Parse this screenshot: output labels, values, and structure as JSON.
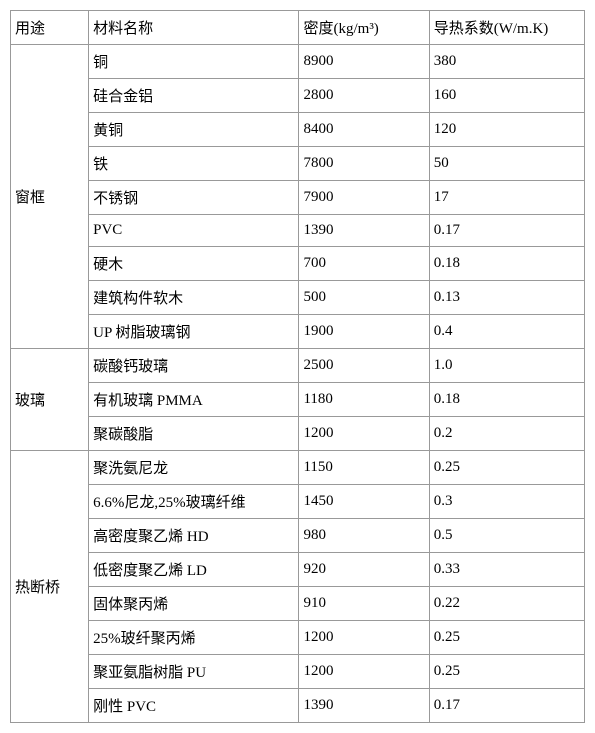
{
  "table": {
    "headers": {
      "use": "用途",
      "material": "材料名称",
      "density": "密度(kg/m³)",
      "thermal": "导热系数(W/m.K)"
    },
    "groups": [
      {
        "use": "窗框",
        "rows": [
          {
            "material": "铜",
            "density": "8900",
            "thermal": "380"
          },
          {
            "material": "硅合金铝",
            "density": "2800",
            "thermal": "160"
          },
          {
            "material": "黄铜",
            "density": "8400",
            "thermal": "120"
          },
          {
            "material": "铁",
            "density": "7800",
            "thermal": "50"
          },
          {
            "material": "不锈钢",
            "density": "7900",
            "thermal": "17"
          },
          {
            "material": "PVC",
            "density": "1390",
            "thermal": "0.17"
          },
          {
            "material": "硬木",
            "density": "700",
            "thermal": "0.18"
          },
          {
            "material": "建筑构件软木",
            "density": "500",
            "thermal": "0.13"
          },
          {
            "material": "UP 树脂玻璃钢",
            "density": "1900",
            "thermal": "0.4"
          }
        ]
      },
      {
        "use": "玻璃",
        "rows": [
          {
            "material": "碳酸钙玻璃",
            "density": "2500",
            "thermal": "1.0"
          },
          {
            "material": "有机玻璃 PMMA",
            "density": "1180",
            "thermal": "0.18"
          },
          {
            "material": "聚碳酸脂",
            "density": "1200",
            "thermal": "0.2"
          }
        ]
      },
      {
        "use": "热断桥",
        "rows": [
          {
            "material": "聚洗氨尼龙",
            "density": "1150",
            "thermal": "0.25"
          },
          {
            "material": "6.6%尼龙,25%玻璃纤维",
            "density": "1450",
            "thermal": "0.3"
          },
          {
            "material": "高密度聚乙烯 HD",
            "density": "980",
            "thermal": "0.5"
          },
          {
            "material": "低密度聚乙烯 LD",
            "density": "920",
            "thermal": "0.33"
          },
          {
            "material": "固体聚丙烯",
            "density": "910",
            "thermal": "0.22"
          },
          {
            "material": "25%玻纤聚丙烯",
            "density": "1200",
            "thermal": "0.25"
          },
          {
            "material": "聚亚氨脂树脂 PU",
            "density": "1200",
            "thermal": "0.25"
          },
          {
            "material": "刚性 PVC",
            "density": "1390",
            "thermal": "0.17"
          }
        ]
      }
    ]
  },
  "colors": {
    "border": "#999999",
    "text": "#000000",
    "background": "#ffffff"
  },
  "font_size": 15
}
